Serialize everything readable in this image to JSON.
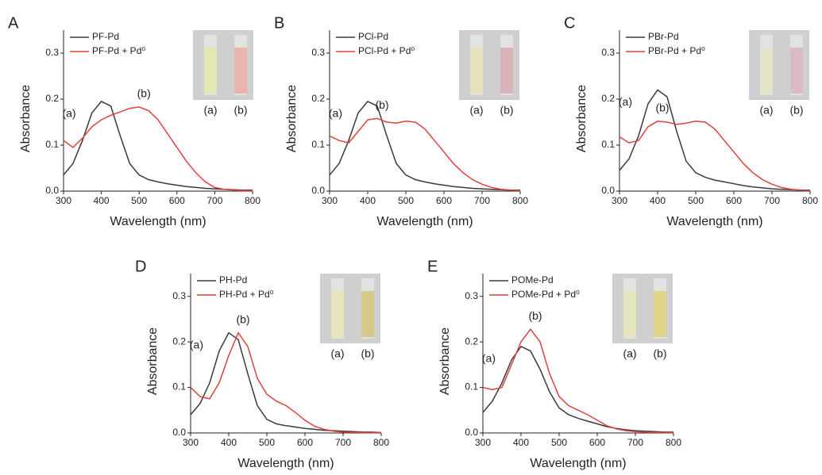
{
  "chart_data": [
    {
      "type": "line",
      "panel": "A",
      "x_label": "Wavelength (nm)",
      "y_label": "Absorbance",
      "x": [
        300,
        325,
        350,
        375,
        400,
        425,
        450,
        475,
        500,
        525,
        550,
        575,
        600,
        625,
        650,
        675,
        700,
        725,
        750,
        775,
        800
      ],
      "series": [
        {
          "name": "PF-Pd",
          "color": "#3a3a3a",
          "values": [
            0.035,
            0.06,
            0.11,
            0.17,
            0.195,
            0.185,
            0.12,
            0.06,
            0.035,
            0.025,
            0.02,
            0.016,
            0.013,
            0.01,
            0.008,
            0.006,
            0.005,
            0.004,
            0.003,
            0.002,
            0.002
          ]
        },
        {
          "name": "PF-Pd + Pd⁰",
          "color": "#e0403c",
          "values": [
            0.11,
            0.095,
            0.115,
            0.14,
            0.155,
            0.165,
            0.172,
            0.18,
            0.183,
            0.175,
            0.155,
            0.125,
            0.095,
            0.065,
            0.04,
            0.02,
            0.008,
            0.004,
            0.002,
            0.001,
            0.001
          ]
        }
      ],
      "annotations": [
        "(a)",
        "(b)"
      ],
      "insets": [
        {
          "label": "(a)",
          "color": "#e4e6b4"
        },
        {
          "label": "(b)",
          "color": "#e8b4ac"
        }
      ],
      "xlim": [
        300,
        800
      ],
      "xticks": [
        300,
        400,
        500,
        600,
        700,
        800
      ],
      "ylim": [
        0,
        0.35
      ],
      "yticks": [
        {
          "value": 0,
          "label": "0.0"
        },
        0.1,
        0.2,
        0.3
      ]
    },
    {
      "type": "line",
      "panel": "B",
      "x_label": "Wavelength (nm)",
      "y_label": "Absorbance",
      "x": [
        300,
        325,
        350,
        375,
        400,
        425,
        450,
        475,
        500,
        525,
        550,
        575,
        600,
        625,
        650,
        675,
        700,
        725,
        750,
        775,
        800
      ],
      "series": [
        {
          "name": "PCl-Pd",
          "color": "#3a3a3a",
          "values": [
            0.035,
            0.06,
            0.11,
            0.17,
            0.195,
            0.185,
            0.12,
            0.06,
            0.035,
            0.025,
            0.02,
            0.016,
            0.013,
            0.01,
            0.008,
            0.006,
            0.005,
            0.004,
            0.003,
            0.002,
            0.002
          ]
        },
        {
          "name": "PCl-Pd + Pd⁰",
          "color": "#e0403c",
          "values": [
            0.12,
            0.11,
            0.105,
            0.13,
            0.155,
            0.158,
            0.15,
            0.148,
            0.152,
            0.15,
            0.135,
            0.11,
            0.085,
            0.06,
            0.04,
            0.025,
            0.015,
            0.008,
            0.004,
            0.002,
            0.001
          ]
        }
      ],
      "annotations": [
        "(a)",
        "(b)"
      ],
      "insets": [
        {
          "label": "(a)",
          "color": "#e4e2be"
        },
        {
          "label": "(b)",
          "color": "#d8b4b8"
        }
      ],
      "xlim": [
        300,
        800
      ],
      "xticks": [
        300,
        400,
        500,
        600,
        700,
        800
      ],
      "ylim": [
        0,
        0.35
      ],
      "yticks": [
        {
          "value": 0,
          "label": "0.0"
        },
        0.1,
        0.2,
        0.3
      ]
    },
    {
      "type": "line",
      "panel": "C",
      "x_label": "Wavelength (nm)",
      "y_label": "Absorbance",
      "x": [
        300,
        325,
        350,
        375,
        400,
        425,
        450,
        475,
        500,
        525,
        550,
        575,
        600,
        625,
        650,
        675,
        700,
        725,
        750,
        775,
        800
      ],
      "series": [
        {
          "name": "PBr-Pd",
          "color": "#3a3a3a",
          "values": [
            0.045,
            0.07,
            0.12,
            0.19,
            0.22,
            0.205,
            0.13,
            0.065,
            0.04,
            0.03,
            0.024,
            0.02,
            0.016,
            0.012,
            0.009,
            0.007,
            0.005,
            0.004,
            0.003,
            0.002,
            0.002
          ]
        },
        {
          "name": "PBr-Pd + Pd⁰",
          "color": "#e0403c",
          "values": [
            0.118,
            0.105,
            0.11,
            0.14,
            0.152,
            0.15,
            0.145,
            0.148,
            0.152,
            0.15,
            0.135,
            0.11,
            0.085,
            0.06,
            0.04,
            0.025,
            0.015,
            0.008,
            0.004,
            0.002,
            0.001
          ]
        }
      ],
      "annotations": [
        "(a)",
        "(b)"
      ],
      "insets": [
        {
          "label": "(a)",
          "color": "#e6e4c8"
        },
        {
          "label": "(b)",
          "color": "#dcbcc4"
        }
      ],
      "xlim": [
        300,
        800
      ],
      "xticks": [
        300,
        400,
        500,
        600,
        700,
        800
      ],
      "ylim": [
        0,
        0.35
      ],
      "yticks": [
        {
          "value": 0,
          "label": "0.0"
        },
        0.1,
        0.2,
        0.3
      ]
    },
    {
      "type": "line",
      "panel": "D",
      "x_label": "Wavelength (nm)",
      "y_label": "Absorbance",
      "x": [
        300,
        325,
        350,
        375,
        400,
        425,
        450,
        475,
        500,
        525,
        550,
        575,
        600,
        625,
        650,
        675,
        700,
        725,
        750,
        775,
        800
      ],
      "series": [
        {
          "name": "PH-Pd",
          "color": "#3a3a3a",
          "values": [
            0.04,
            0.065,
            0.11,
            0.18,
            0.22,
            0.205,
            0.13,
            0.06,
            0.03,
            0.02,
            0.016,
            0.013,
            0.01,
            0.008,
            0.006,
            0.005,
            0.004,
            0.003,
            0.002,
            0.002,
            0.001
          ]
        },
        {
          "name": "PH-Pd + Pd⁰",
          "color": "#e0403c",
          "values": [
            0.1,
            0.08,
            0.075,
            0.11,
            0.17,
            0.22,
            0.19,
            0.12,
            0.085,
            0.07,
            0.06,
            0.045,
            0.028,
            0.015,
            0.008,
            0.004,
            0.002,
            0.001,
            0.001,
            0.001,
            0.001
          ]
        }
      ],
      "annotations": [
        "(a)",
        "(b)"
      ],
      "insets": [
        {
          "label": "(a)",
          "color": "#e6e4bc"
        },
        {
          "label": "(b)",
          "color": "#d8c888"
        }
      ],
      "xlim": [
        300,
        800
      ],
      "xticks": [
        300,
        400,
        500,
        600,
        700,
        800
      ],
      "ylim": [
        0,
        0.35
      ],
      "yticks": [
        {
          "value": 0,
          "label": "0.0"
        },
        0.1,
        0.2,
        0.3
      ]
    },
    {
      "type": "line",
      "panel": "E",
      "x_label": "Wavelength (nm)",
      "y_label": "Absorbance",
      "x": [
        300,
        325,
        350,
        375,
        400,
        425,
        450,
        475,
        500,
        525,
        550,
        575,
        600,
        625,
        650,
        675,
        700,
        725,
        750,
        775,
        800
      ],
      "series": [
        {
          "name": "POMe-Pd",
          "color": "#3a3a3a",
          "values": [
            0.045,
            0.07,
            0.11,
            0.16,
            0.19,
            0.18,
            0.14,
            0.09,
            0.055,
            0.04,
            0.032,
            0.026,
            0.02,
            0.014,
            0.01,
            0.007,
            0.005,
            0.004,
            0.003,
            0.002,
            0.002
          ]
        },
        {
          "name": "POMe-Pd + Pd⁰",
          "color": "#e0403c",
          "values": [
            0.1,
            0.095,
            0.1,
            0.15,
            0.2,
            0.228,
            0.2,
            0.13,
            0.08,
            0.06,
            0.05,
            0.04,
            0.028,
            0.016,
            0.009,
            0.005,
            0.003,
            0.002,
            0.001,
            0.001,
            0.001
          ]
        }
      ],
      "annotations": [
        "(a)",
        "(b)"
      ],
      "insets": [
        {
          "label": "(a)",
          "color": "#e6e6bc"
        },
        {
          "label": "(b)",
          "color": "#e0d488"
        }
      ],
      "xlim": [
        300,
        800
      ],
      "xticks": [
        300,
        400,
        500,
        600,
        700,
        800
      ],
      "ylim": [
        0,
        0.35
      ],
      "yticks": [
        {
          "value": 0,
          "label": "0.0"
        },
        0.1,
        0.2,
        0.3
      ]
    }
  ]
}
